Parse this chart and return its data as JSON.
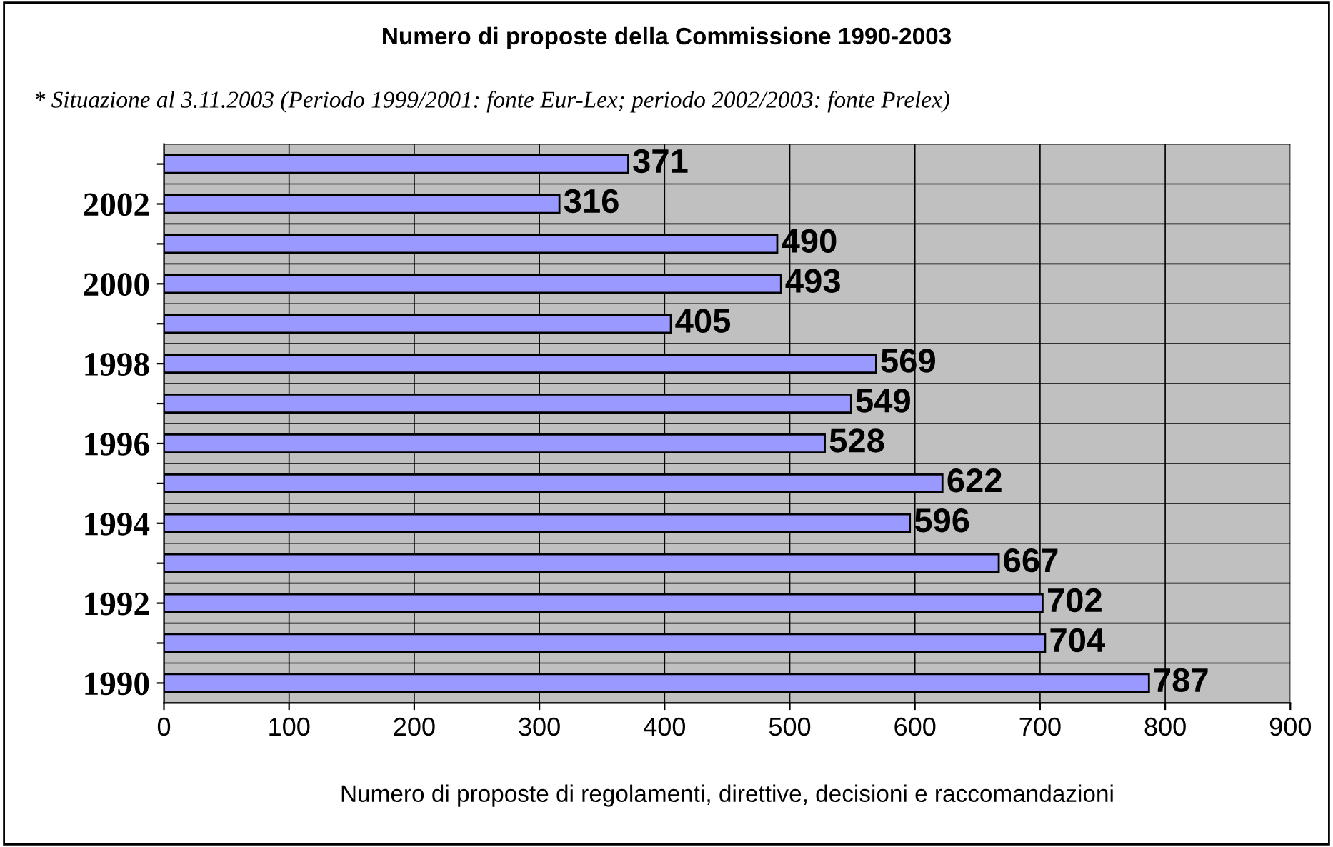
{
  "chart_data": {
    "type": "bar",
    "orientation": "horizontal",
    "title": "Numero di proposte della Commissione 1990-2003",
    "subtitle": "* Situazione al 3.11.2003 (Periodo 1999/2001: fonte Eur-Lex; periodo 2002/2003: fonte Prelex)",
    "xlabel": "Numero di proposte di regolamenti, direttive, decisioni e raccomandazioni",
    "categories": [
      null,
      "2002",
      null,
      "2000",
      null,
      "1998",
      null,
      "1996",
      null,
      "1994",
      null,
      "1992",
      null,
      "1990"
    ],
    "values": [
      371,
      316,
      490,
      493,
      405,
      569,
      549,
      528,
      622,
      596,
      667,
      702,
      704,
      787
    ],
    "color": "#9999ff",
    "xlim": [
      0,
      900
    ],
    "xticks": [
      0,
      100,
      200,
      300,
      400,
      500,
      600,
      700,
      800,
      900
    ],
    "grid": true,
    "data_labels": true
  }
}
